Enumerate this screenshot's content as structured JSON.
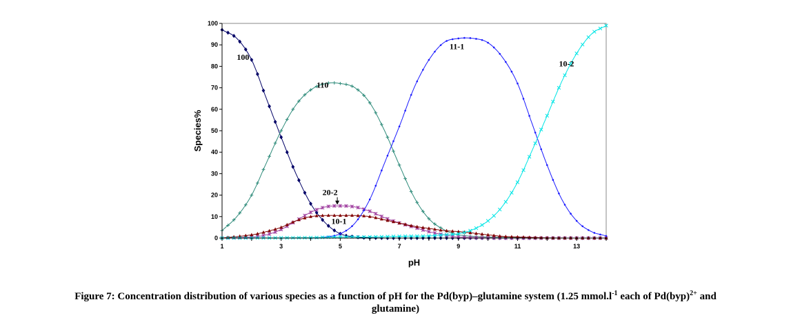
{
  "chart_data": {
    "type": "line",
    "xlabel": "pH",
    "ylabel": "Species%",
    "xlim": [
      1,
      14
    ],
    "ylim": [
      0,
      100
    ],
    "xticks": [
      1,
      3,
      5,
      7,
      9,
      11,
      13
    ],
    "yticks": [
      0,
      10,
      20,
      30,
      40,
      50,
      60,
      70,
      80,
      90,
      100
    ],
    "grid": false,
    "legend": "none",
    "series": [
      {
        "name": "100",
        "color": "#000066",
        "marker": "diamond",
        "points": [
          [
            1,
            97
          ],
          [
            1.5,
            93
          ],
          [
            2,
            83
          ],
          [
            2.5,
            65
          ],
          [
            3,
            47
          ],
          [
            3.5,
            30
          ],
          [
            4,
            16
          ],
          [
            4.5,
            7
          ],
          [
            5,
            2
          ],
          [
            5.5,
            0.5
          ],
          [
            6,
            0.1
          ],
          [
            7,
            0
          ],
          [
            8,
            0
          ],
          [
            9,
            0
          ],
          [
            10,
            0
          ],
          [
            11,
            0
          ],
          [
            12,
            0
          ],
          [
            13,
            0
          ],
          [
            14,
            0
          ]
        ]
      },
      {
        "name": "110",
        "color": "#2e8b7a",
        "marker": "plus",
        "points": [
          [
            1,
            3.5
          ],
          [
            1.5,
            10
          ],
          [
            2,
            20
          ],
          [
            2.5,
            35
          ],
          [
            3,
            50
          ],
          [
            3.5,
            62
          ],
          [
            4,
            69
          ],
          [
            4.5,
            72
          ],
          [
            5,
            72
          ],
          [
            5.5,
            70
          ],
          [
            6,
            63
          ],
          [
            6.5,
            50
          ],
          [
            7,
            34
          ],
          [
            7.5,
            19
          ],
          [
            8,
            9
          ],
          [
            8.5,
            4
          ],
          [
            9,
            1.5
          ],
          [
            10,
            0.5
          ],
          [
            11,
            0.2
          ],
          [
            12,
            0
          ],
          [
            13,
            0
          ],
          [
            14,
            0
          ]
        ]
      },
      {
        "name": "20-2",
        "color": "#a040a0",
        "marker": "star",
        "points": [
          [
            1,
            0
          ],
          [
            2,
            0.5
          ],
          [
            2.5,
            1.5
          ],
          [
            3,
            4
          ],
          [
            3.5,
            8
          ],
          [
            4,
            12
          ],
          [
            4.5,
            14.5
          ],
          [
            5,
            15
          ],
          [
            5.5,
            14.5
          ],
          [
            6,
            12.5
          ],
          [
            6.5,
            9.5
          ],
          [
            7,
            7
          ],
          [
            7.5,
            5
          ],
          [
            8,
            3
          ],
          [
            8.5,
            1.5
          ],
          [
            9,
            0.5
          ],
          [
            10,
            0.1
          ],
          [
            11,
            0
          ],
          [
            12,
            0
          ],
          [
            13,
            0
          ],
          [
            14,
            0
          ]
        ]
      },
      {
        "name": "10-1",
        "color": "#800000",
        "marker": "triangle",
        "points": [
          [
            1,
            0
          ],
          [
            2,
            1.5
          ],
          [
            2.5,
            3
          ],
          [
            3,
            5
          ],
          [
            3.5,
            8
          ],
          [
            4,
            10
          ],
          [
            4.5,
            10.5
          ],
          [
            5,
            10.5
          ],
          [
            5.5,
            10.5
          ],
          [
            6,
            10
          ],
          [
            6.5,
            8.5
          ],
          [
            7,
            7
          ],
          [
            7.5,
            5.5
          ],
          [
            8,
            4.5
          ],
          [
            8.5,
            3.5
          ],
          [
            9,
            3
          ],
          [
            9.5,
            2.3
          ],
          [
            10,
            1.5
          ],
          [
            10.5,
            0.8
          ],
          [
            11,
            0.5
          ],
          [
            12,
            0.1
          ],
          [
            13,
            0
          ],
          [
            14,
            0
          ]
        ]
      },
      {
        "name": "11-1",
        "color": "#1a1aff",
        "marker": "dot",
        "points": [
          [
            4,
            0
          ],
          [
            4.5,
            0.5
          ],
          [
            5,
            2
          ],
          [
            5.5,
            7
          ],
          [
            6,
            18
          ],
          [
            6.5,
            35
          ],
          [
            7,
            52
          ],
          [
            7.5,
            70
          ],
          [
            8,
            83
          ],
          [
            8.5,
            91
          ],
          [
            9,
            93
          ],
          [
            9.5,
            93
          ],
          [
            10,
            91
          ],
          [
            10.5,
            84
          ],
          [
            11,
            72
          ],
          [
            11.5,
            53
          ],
          [
            12,
            34
          ],
          [
            12.5,
            18
          ],
          [
            13,
            8
          ],
          [
            13.5,
            3
          ],
          [
            14,
            1
          ]
        ]
      },
      {
        "name": "10-2",
        "color": "#00e5e5",
        "marker": "x",
        "points": [
          [
            1,
            0
          ],
          [
            4,
            0.2
          ],
          [
            5,
            0.5
          ],
          [
            6,
            0.5
          ],
          [
            7,
            0.8
          ],
          [
            8,
            1
          ],
          [
            8.5,
            1.5
          ],
          [
            9,
            2
          ],
          [
            9.5,
            4
          ],
          [
            10,
            8
          ],
          [
            10.5,
            15
          ],
          [
            11,
            26
          ],
          [
            11.5,
            41
          ],
          [
            12,
            57
          ],
          [
            12.5,
            73
          ],
          [
            13,
            86
          ],
          [
            13.5,
            95
          ],
          [
            14,
            99
          ]
        ]
      }
    ],
    "annotations": [
      {
        "text": "100",
        "x": 1.5,
        "y": 83
      },
      {
        "text": "110",
        "x": 4.2,
        "y": 70
      },
      {
        "text": "20-2",
        "x": 4.4,
        "y": 20,
        "arrow_to": [
          4.9,
          15.5
        ]
      },
      {
        "text": "10-1",
        "x": 4.7,
        "y": 6.5
      },
      {
        "text": "11-1",
        "x": 8.7,
        "y": 88
      },
      {
        "text": "10-2",
        "x": 12.4,
        "y": 80
      }
    ]
  },
  "caption": {
    "part1": "Figure 7: Concentration distribution of various species as a function of pH for the Pd(byp)–glutamine system (1.25 mmol.l",
    "sup1": "-1",
    "part2": " each of Pd(byp)",
    "sup2": "2+",
    "part3": " and",
    "line2": "glutamine)"
  }
}
